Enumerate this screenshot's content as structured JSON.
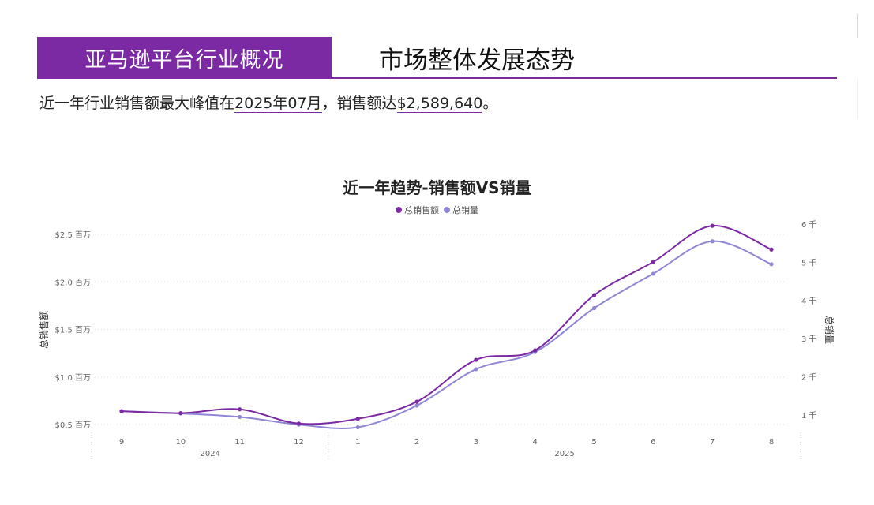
{
  "header": {
    "tab_label": "亚马逊平台行业概况",
    "title": "市场整体发展态势"
  },
  "summary": {
    "text_before": "近一年行业销售额最大峰值在",
    "peak_month": "2025年07月",
    "text_middle": "，销售额达",
    "peak_value": "$2,589,640",
    "text_after": "。"
  },
  "colors": {
    "brand": "#7b2aa3",
    "sales_series": "#7b2aa3",
    "volume_series": "#8f86d4",
    "grid": "#dddddd"
  },
  "chart_data": {
    "type": "line",
    "title": "近一年趋势-销售额VS销量",
    "legend_position": "top-center",
    "grid": true,
    "x_categories": [
      "9",
      "10",
      "11",
      "12",
      "1",
      "2",
      "3",
      "4",
      "5",
      "6",
      "7",
      "8"
    ],
    "x_groups": [
      {
        "label": "2024",
        "months": [
          "9",
          "10",
          "11",
          "12"
        ]
      },
      {
        "label": "2025",
        "months": [
          "1",
          "2",
          "3",
          "4",
          "5",
          "6",
          "7",
          "8"
        ]
      }
    ],
    "y_left": {
      "label": "总销售额",
      "ticks": [
        "$0.5 百万",
        "$1.0 百万",
        "$1.5 百万",
        "$2.0 百万",
        "$2.5 百万"
      ],
      "tick_values": [
        0.5,
        1.0,
        1.5,
        2.0,
        2.5
      ],
      "range": [
        0.4,
        2.78
      ],
      "unit": "百万"
    },
    "y_right": {
      "label": "总销量",
      "ticks": [
        "1 千",
        "2 千",
        "3 千",
        "4 千",
        "5 千",
        "6 千"
      ],
      "tick_values": [
        1,
        2,
        3,
        4,
        5,
        6
      ],
      "range": [
        0.6,
        6.2
      ],
      "unit": "千"
    },
    "series": [
      {
        "name": "总销售额",
        "axis": "left",
        "values": [
          0.64,
          0.62,
          0.66,
          0.51,
          0.56,
          0.74,
          1.18,
          1.28,
          1.86,
          2.21,
          2.59,
          2.34
        ]
      },
      {
        "name": "总销量",
        "axis": "right",
        "values": [
          1.1,
          1.04,
          0.95,
          0.75,
          0.68,
          1.25,
          2.2,
          2.65,
          3.8,
          4.7,
          5.55,
          4.95
        ]
      }
    ]
  }
}
